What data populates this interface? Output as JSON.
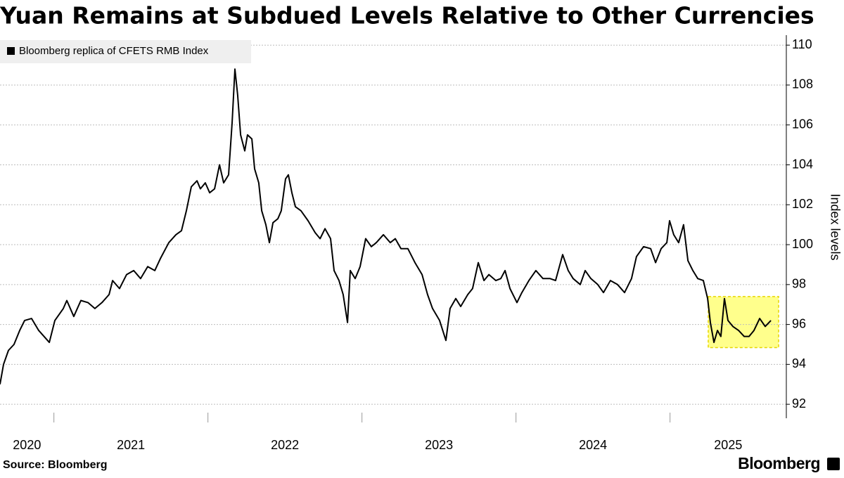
{
  "chart_data": {
    "type": "line",
    "title": "Yuan Remains at Subdued Levels Relative to Other Currencies",
    "ylabel": "Index levels",
    "source": "Source: Bloomberg",
    "brand": "Bloomberg",
    "ylim": [
      91.3,
      110.5
    ],
    "yticks": [
      92,
      94,
      96,
      98,
      100,
      102,
      104,
      106,
      108,
      110
    ],
    "xlim": [
      2020.65,
      2025.755
    ],
    "xticks": [
      2020,
      2021,
      2022,
      2023,
      2024,
      2025
    ],
    "grid": true,
    "legend": "top-left",
    "highlight": {
      "color": "#ffff66",
      "xlim": [
        2025.248,
        2025.705
      ],
      "ylim": [
        94.84,
        97.4
      ]
    },
    "x": [
      2020.65,
      2020.673,
      2020.705,
      2020.741,
      2020.778,
      2020.81,
      2020.855,
      2020.901,
      2020.97,
      2021.006,
      2021.061,
      2021.084,
      2021.129,
      2021.175,
      2021.221,
      2021.266,
      2021.312,
      2021.358,
      2021.381,
      2021.426,
      2021.472,
      2021.518,
      2021.563,
      2021.609,
      2021.655,
      2021.691,
      2021.746,
      2021.792,
      2021.828,
      2021.86,
      2021.892,
      2021.929,
      2021.951,
      2021.983,
      2022.011,
      2022.043,
      2022.075,
      2022.102,
      2022.134,
      2022.157,
      2022.175,
      2022.193,
      2022.212,
      2022.239,
      2022.257,
      2022.285,
      2022.303,
      2022.33,
      2022.349,
      2022.376,
      2022.399,
      2022.422,
      2022.454,
      2022.476,
      2022.504,
      2022.522,
      2022.545,
      2022.568,
      2022.604,
      2022.65,
      2022.696,
      2022.728,
      2022.76,
      2022.796,
      2022.819,
      2022.851,
      2022.878,
      2022.906,
      2022.924,
      2022.956,
      2022.988,
      2023.024,
      2023.061,
      2023.093,
      2023.139,
      2023.184,
      2023.216,
      2023.253,
      2023.298,
      2023.344,
      2023.39,
      2023.426,
      2023.458,
      2023.504,
      2023.545,
      2023.572,
      2023.609,
      2023.641,
      2023.687,
      2023.718,
      2023.755,
      2023.792,
      2023.824,
      2023.869,
      2023.901,
      2023.929,
      2023.961,
      2024.006,
      2024.038,
      2024.084,
      2024.129,
      2024.175,
      2024.221,
      2024.257,
      2024.303,
      2024.339,
      2024.371,
      2024.417,
      2024.449,
      2024.486,
      2024.531,
      2024.568,
      2024.613,
      2024.659,
      2024.705,
      2024.75,
      2024.782,
      2024.828,
      2024.874,
      2024.906,
      2024.942,
      2024.979,
      2024.997,
      2025.024,
      2025.056,
      2025.088,
      2025.116,
      2025.148,
      2025.18,
      2025.216,
      2025.244,
      2025.262,
      2025.285,
      2025.308,
      2025.33,
      2025.353,
      2025.376,
      2025.408,
      2025.445,
      2025.481,
      2025.513,
      2025.545,
      2025.582,
      2025.618,
      2025.655
    ],
    "series": [
      {
        "name": "Bloomberg replica of CFETS RMB Index",
        "color": "#000000",
        "values": [
          93.0,
          94.0,
          94.7,
          95.0,
          95.7,
          96.2,
          96.3,
          95.7,
          95.1,
          96.2,
          96.8,
          97.2,
          96.4,
          97.2,
          97.1,
          96.8,
          97.1,
          97.5,
          98.2,
          97.8,
          98.5,
          98.7,
          98.3,
          98.9,
          98.7,
          99.3,
          100.1,
          100.5,
          100.7,
          101.7,
          102.9,
          103.2,
          102.8,
          103.1,
          102.6,
          102.8,
          104.0,
          103.1,
          103.5,
          106.1,
          108.8,
          107.5,
          105.5,
          104.7,
          105.5,
          105.3,
          103.8,
          103.1,
          101.7,
          101.0,
          100.1,
          101.1,
          101.3,
          101.7,
          103.3,
          103.5,
          102.6,
          101.9,
          101.7,
          101.2,
          100.6,
          100.3,
          100.8,
          100.3,
          98.7,
          98.2,
          97.5,
          96.1,
          98.7,
          98.3,
          98.9,
          100.3,
          99.9,
          100.1,
          100.5,
          100.1,
          100.3,
          99.8,
          99.8,
          99.1,
          98.5,
          97.5,
          96.8,
          96.2,
          95.2,
          96.8,
          97.3,
          96.9,
          97.5,
          97.8,
          99.1,
          98.2,
          98.5,
          98.2,
          98.3,
          98.7,
          97.8,
          97.1,
          97.6,
          98.2,
          98.7,
          98.3,
          98.3,
          98.2,
          99.5,
          98.7,
          98.3,
          98.0,
          98.7,
          98.3,
          98.0,
          97.6,
          98.2,
          98.0,
          97.6,
          98.3,
          99.4,
          99.9,
          99.8,
          99.1,
          99.8,
          100.1,
          101.2,
          100.5,
          100.1,
          101.0,
          99.2,
          98.7,
          98.3,
          98.2,
          97.3,
          96.1,
          95.1,
          95.7,
          95.4,
          97.3,
          96.2,
          95.9,
          95.7,
          95.4,
          95.4,
          95.7,
          96.3,
          95.9,
          96.2
        ]
      }
    ]
  }
}
